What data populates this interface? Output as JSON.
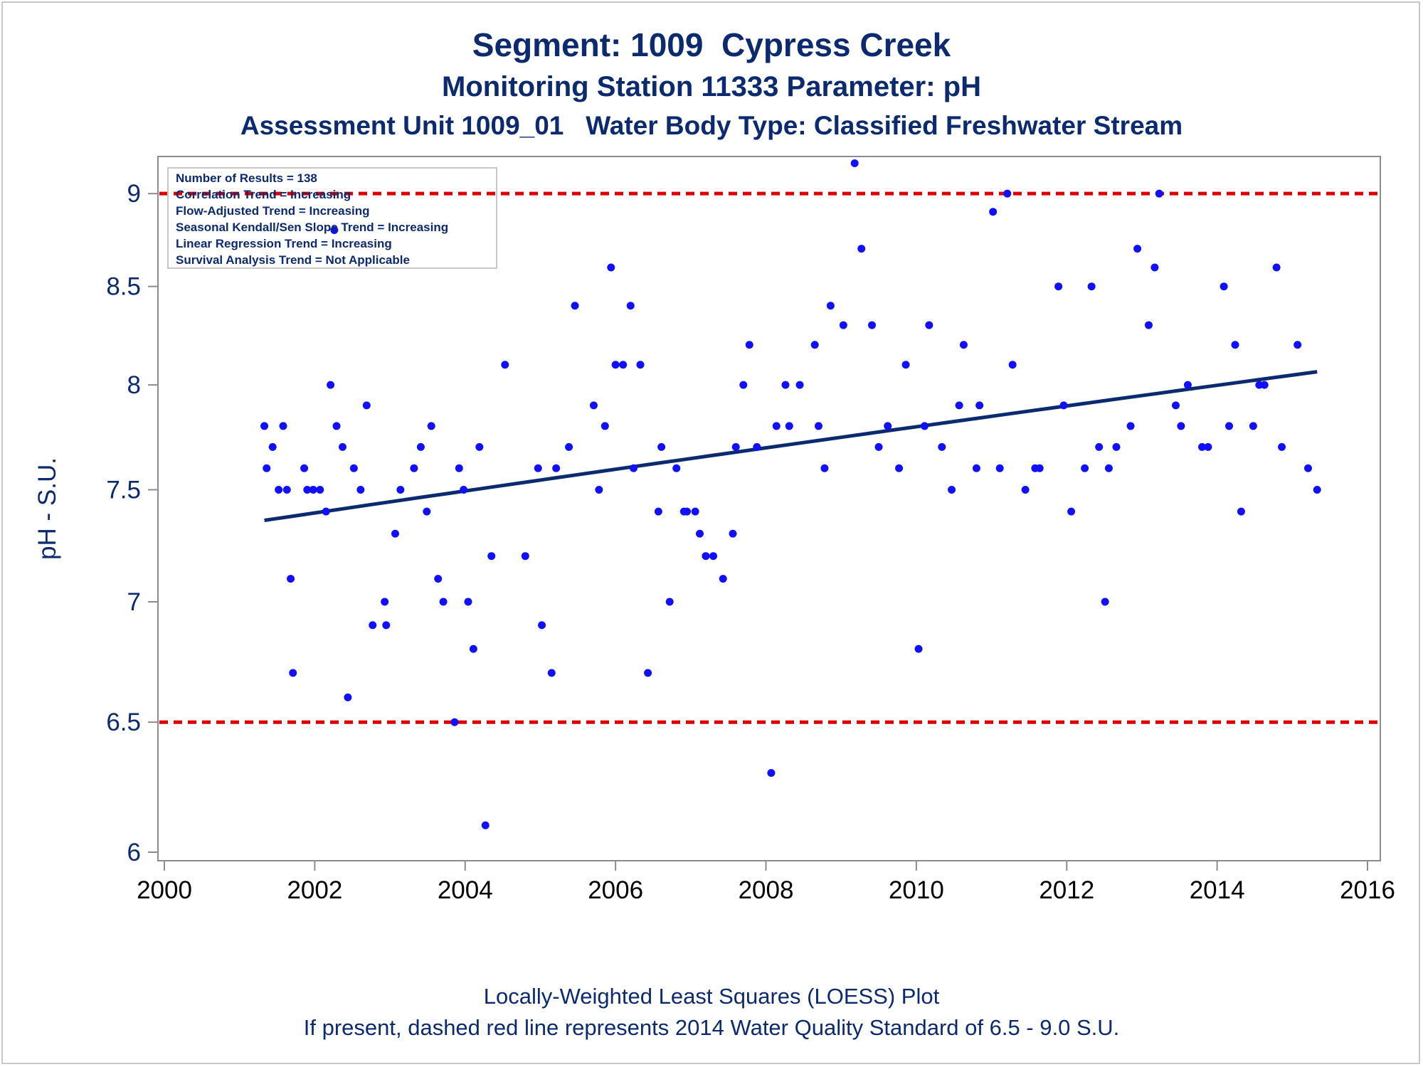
{
  "titles": {
    "line1": "Segment: 1009  Cypress Creek",
    "line2": "Monitoring Station 11333 Parameter: pH",
    "line3": "Assessment Unit 1009_01   Water Body Type: Classified Freshwater Stream"
  },
  "footnotes": {
    "line1": "Locally-Weighted Least Squares (LOESS) Plot",
    "line2": "If present, dashed red line represents 2014 Water Quality Standard of 6.5 - 9.0 S.U."
  },
  "legend_box": [
    "Number of Results = 138",
    "Correlation Trend = Increasing",
    "Flow-Adjusted Trend = Increasing",
    "Seasonal Kendall/Sen Slope Trend = Increasing",
    "Linear Regression Trend = Increasing",
    "Survival Analysis Trend = Not Applicable"
  ],
  "colors": {
    "text": "#0b2a6f",
    "points": "#1010ff",
    "trend_line": "#0b2a6f",
    "standard_line": "#dd0000",
    "axis": "#8c8c8c"
  },
  "chart_data": {
    "type": "scatter",
    "title": "Segment: 1009  Cypress Creek",
    "xlabel": "",
    "ylabel": "pH - S.U.",
    "xlim": [
      2000,
      2016
    ],
    "ylim": [
      6,
      9.2
    ],
    "y_scale": "log",
    "x_ticks": [
      2000,
      2002,
      2004,
      2006,
      2008,
      2010,
      2012,
      2014,
      2016
    ],
    "y_ticks": [
      6,
      6.5,
      7,
      7.5,
      8,
      8.5,
      9
    ],
    "y_tick_labels": [
      "6",
      "6.5",
      "7",
      "7.5",
      "8",
      "8.5",
      "9"
    ],
    "grid": false,
    "legend": "top-left",
    "standards": [
      6.5,
      9.0
    ],
    "trend_line": {
      "x": [
        2001.33,
        2015.33
      ],
      "y": [
        7.36,
        8.065
      ]
    },
    "series": [
      {
        "x": [
          2001.33,
          2001.36,
          2001.44,
          2001.52,
          2001.58,
          2001.63,
          2001.68,
          2001.71,
          2001.86,
          2001.9,
          2001.98,
          2002.07,
          2002.15,
          2002.21,
          2002.29,
          2002.37,
          2002.44,
          2002.52,
          2002.61,
          2002.69,
          2002.77,
          2002.93,
          2002.95,
          2003.07,
          2003.14,
          2003.32,
          2003.41,
          2003.49,
          2003.55,
          2003.64,
          2003.71,
          2003.86,
          2003.92,
          2003.98,
          2004.04,
          2004.11,
          2004.19,
          2004.27,
          2004.35,
          2004.53,
          2004.8,
          2004.97,
          2005.02,
          2005.15,
          2005.21,
          2005.38,
          2005.46,
          2005.71,
          2005.78,
          2005.86,
          2005.94,
          2006.0,
          2006.1,
          2006.2,
          2006.24,
          2006.33,
          2006.43,
          2006.57,
          2006.61,
          2006.72,
          2006.81,
          2006.91,
          2006.95,
          2007.06,
          2007.12,
          2007.2,
          2007.3,
          2007.43,
          2007.56,
          2007.6,
          2007.7,
          2007.78,
          2007.88,
          2008.07,
          2008.14,
          2008.26,
          2008.31,
          2008.45,
          2008.65,
          2008.7,
          2008.78,
          2008.86,
          2009.03,
          2009.18,
          2009.27,
          2009.41,
          2009.5,
          2009.62,
          2009.77,
          2009.86,
          2010.03,
          2010.11,
          2010.17,
          2010.34,
          2010.47,
          2010.57,
          2010.63,
          2010.8,
          2010.84,
          2011.02,
          2011.11,
          2011.21,
          2011.28,
          2011.45,
          2011.58,
          2011.64,
          2011.89,
          2011.96,
          2012.06,
          2012.24,
          2012.33,
          2012.43,
          2012.51,
          2012.56,
          2012.66,
          2012.85,
          2012.94,
          2013.09,
          2013.17,
          2013.23,
          2013.45,
          2013.52,
          2013.61,
          2013.8,
          2013.88,
          2014.09,
          2014.16,
          2014.24,
          2014.32,
          2014.48,
          2014.56,
          2014.63,
          2014.79,
          2014.86,
          2015.07,
          2015.21,
          2015.33,
          2002.26
        ],
        "y": [
          7.8,
          7.6,
          7.7,
          7.5,
          7.8,
          7.5,
          7.1,
          6.7,
          7.6,
          7.5,
          7.5,
          7.5,
          7.4,
          8.0,
          7.8,
          7.7,
          6.6,
          7.6,
          7.5,
          7.9,
          6.9,
          7.0,
          6.9,
          7.3,
          7.5,
          7.6,
          7.7,
          7.4,
          7.8,
          7.1,
          7.0,
          6.5,
          7.6,
          7.5,
          7.0,
          6.8,
          7.7,
          6.1,
          7.2,
          8.1,
          7.2,
          7.6,
          6.9,
          6.7,
          7.6,
          7.7,
          8.4,
          7.9,
          7.5,
          7.8,
          8.6,
          8.1,
          8.1,
          8.4,
          7.6,
          8.1,
          6.7,
          7.4,
          7.7,
          7.0,
          7.6,
          7.4,
          7.4,
          7.4,
          7.3,
          7.2,
          7.2,
          7.1,
          7.3,
          7.7,
          8.0,
          8.2,
          7.7,
          6.3,
          7.8,
          8.0,
          7.8,
          8.0,
          8.2,
          7.8,
          7.6,
          8.4,
          8.3,
          9.17,
          8.7,
          8.3,
          7.7,
          7.8,
          7.6,
          8.1,
          6.8,
          7.8,
          8.3,
          7.7,
          7.5,
          7.9,
          8.2,
          7.6,
          7.9,
          8.9,
          7.6,
          9.0,
          8.1,
          7.5,
          7.6,
          7.6,
          8.5,
          7.9,
          7.4,
          7.6,
          8.5,
          7.7,
          7.0,
          7.6,
          7.7,
          7.8,
          8.7,
          8.3,
          8.6,
          9.0,
          7.9,
          7.8,
          8.0,
          7.7,
          7.7,
          8.5,
          7.8,
          8.2,
          7.4,
          7.8,
          8.0,
          8.0,
          8.6,
          7.7,
          8.2,
          7.6,
          7.5,
          8.8
        ]
      }
    ]
  }
}
